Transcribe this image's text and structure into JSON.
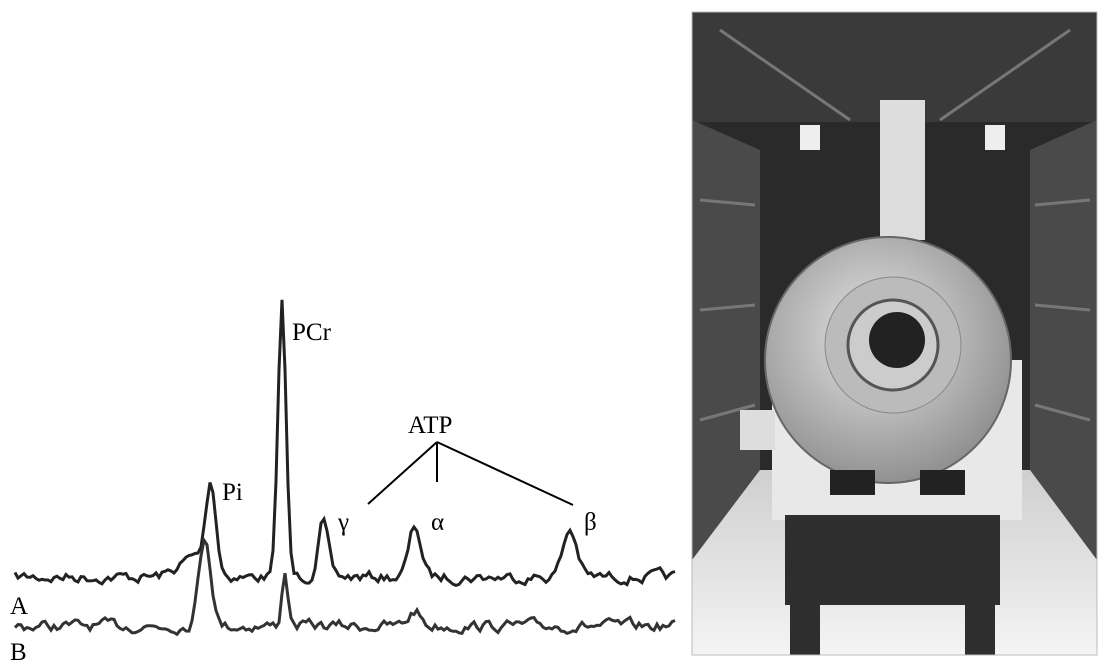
{
  "spectrum": {
    "peaks": {
      "pcr": "PCr",
      "pi": "Pi",
      "atp": "ATP",
      "gamma": "γ",
      "alpha": "α",
      "beta": "β"
    },
    "traces": {
      "a": "A",
      "b": "B"
    }
  }
}
